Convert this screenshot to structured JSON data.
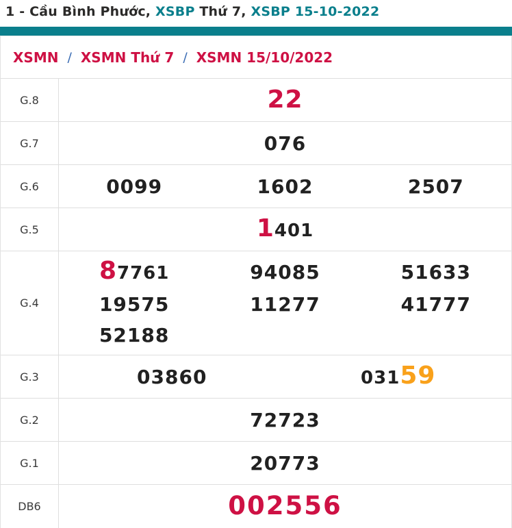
{
  "colors": {
    "teal": "#0a7f8c",
    "title_dark": "#2b2a29",
    "crimson": "#ce1144",
    "orange": "#f9a11b",
    "number_dark": "#212121",
    "slash_blue": "#3a6cb4"
  },
  "title": {
    "part1": "1 - Cầu Bình Phước, ",
    "part2": "XSBP",
    "part3": " Thứ 7, ",
    "part4": "XSBP 15-10-2022"
  },
  "breadcrumb": {
    "separator": "/",
    "items": [
      "XSMN",
      "XSMN Thứ 7",
      "XSMN 15/10/2022"
    ]
  },
  "table": {
    "rows": [
      {
        "label": "G.8",
        "columns": 1,
        "lines": [
          [
            [
              {
                "text": "22",
                "color": "red"
              }
            ]
          ]
        ]
      },
      {
        "label": "G.7",
        "columns": 1,
        "lines": [
          [
            [
              {
                "text": "076"
              }
            ]
          ]
        ]
      },
      {
        "label": "G.6",
        "columns": 3,
        "lines": [
          [
            [
              {
                "text": "0099"
              }
            ],
            [
              {
                "text": "1602"
              }
            ],
            [
              {
                "text": "2507"
              }
            ]
          ]
        ]
      },
      {
        "label": "G.5",
        "columns": 1,
        "lines": [
          [
            [
              {
                "text": "1",
                "color": "red"
              },
              {
                "text": "401"
              }
            ]
          ]
        ]
      },
      {
        "label": "G.4",
        "columns": 3,
        "lines": [
          [
            [
              {
                "text": "8",
                "color": "red"
              },
              {
                "text": "7761"
              }
            ],
            [
              {
                "text": "94085"
              }
            ],
            [
              {
                "text": "51633"
              }
            ]
          ],
          [
            [
              {
                "text": "19575"
              }
            ],
            [
              {
                "text": "11277"
              }
            ],
            [
              {
                "text": "41777"
              }
            ]
          ],
          [
            [
              {
                "text": "52188"
              }
            ]
          ]
        ]
      },
      {
        "label": "G.3",
        "columns": 2,
        "lines": [
          [
            [
              {
                "text": "03860"
              }
            ],
            [
              {
                "text": "031"
              },
              {
                "text": "59",
                "color": "orange"
              }
            ]
          ]
        ]
      },
      {
        "label": "G.2",
        "columns": 1,
        "lines": [
          [
            [
              {
                "text": "72723"
              }
            ]
          ]
        ]
      },
      {
        "label": "G.1",
        "columns": 1,
        "lines": [
          [
            [
              {
                "text": "20773"
              }
            ]
          ]
        ]
      },
      {
        "label": "DB6",
        "columns": 1,
        "db": true,
        "lines": [
          [
            [
              {
                "text": "002556",
                "color": "red"
              }
            ]
          ]
        ]
      }
    ]
  }
}
